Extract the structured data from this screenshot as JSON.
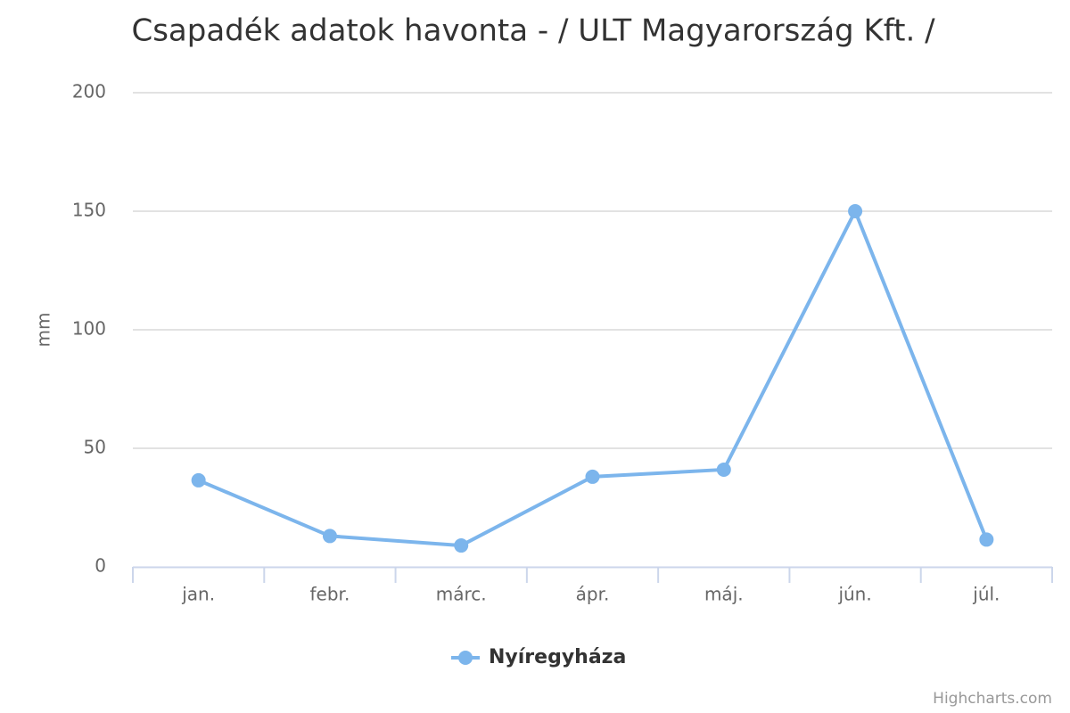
{
  "chart_data": {
    "type": "line",
    "title": "Csapadék adatok havonta - / ULT Magyarország Kft. /",
    "y_label": "mm",
    "categories": [
      "jan.",
      "febr.",
      "márc.",
      "ápr.",
      "máj.",
      "jún.",
      "júl."
    ],
    "series": [
      {
        "name": "Nyíregyháza",
        "color": "#7cb5ec",
        "values": [
          36.5,
          13,
          9,
          38,
          41,
          150,
          11.5
        ]
      }
    ],
    "ylim": [
      0,
      200
    ],
    "yticks": [
      0,
      50,
      100,
      150,
      200
    ],
    "grid": true,
    "legend": "bottom",
    "credits": "Highcharts.com"
  }
}
